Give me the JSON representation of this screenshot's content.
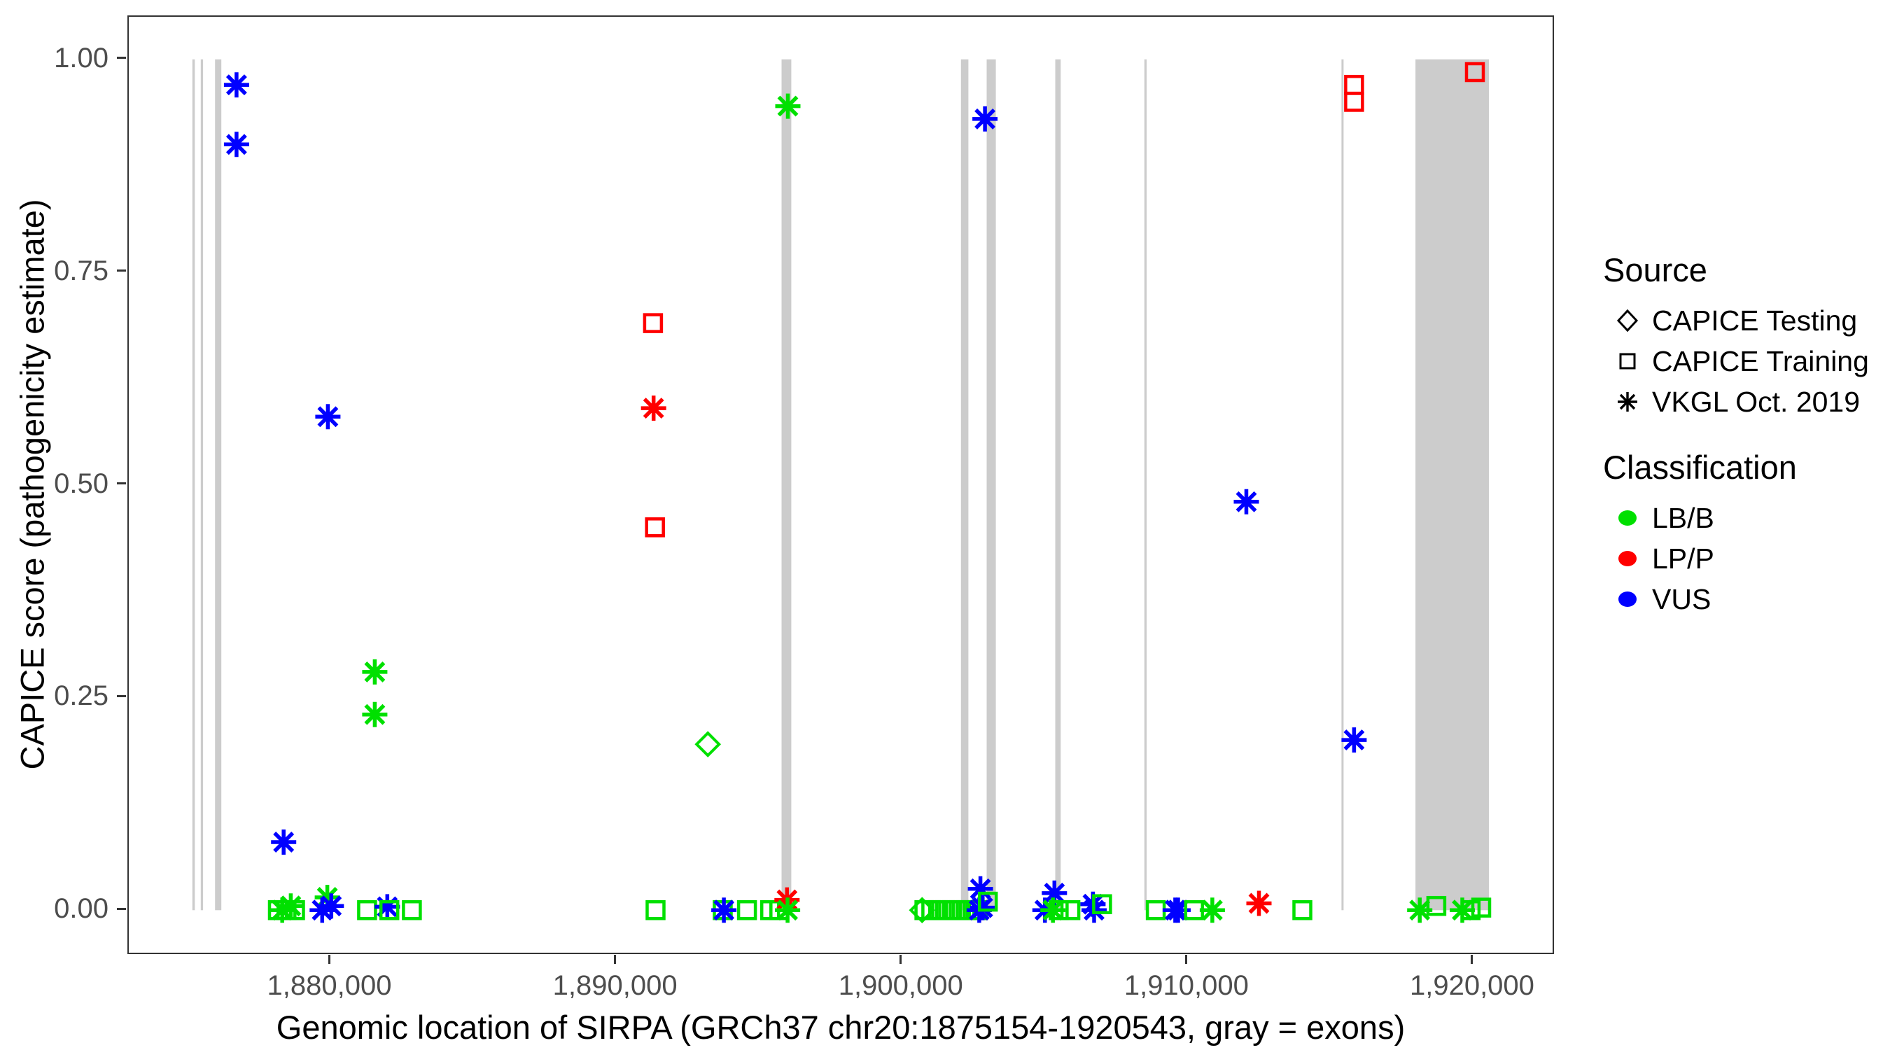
{
  "figure": {
    "x_axis_title": "Genomic location of SIRPA (GRCh37 chr20:1875154-1920543, gray = exons)",
    "y_axis_title": "CAPICE score (pathogenicity estimate)"
  },
  "legend": {
    "source": {
      "title": "Source",
      "items": [
        {
          "label": "CAPICE Testing",
          "marker": "diamond-icon"
        },
        {
          "label": "CAPICE Training",
          "marker": "square-icon"
        },
        {
          "label": "VKGL Oct. 2019",
          "marker": "asterisk-icon"
        }
      ]
    },
    "classification": {
      "title": "Classification",
      "items": [
        {
          "label": "LB/B",
          "color": "#00e000"
        },
        {
          "label": "LP/P",
          "color": "#ff0000"
        },
        {
          "label": "VUS",
          "color": "#0000ff"
        }
      ]
    }
  },
  "chart_data": {
    "type": "scatter",
    "title": "",
    "xlabel": "Genomic location of SIRPA (GRCh37 chr20:1875154-1920543, gray = exons)",
    "ylabel": "CAPICE score (pathogenicity estimate)",
    "x_domain": [
      1872930,
      1922770
    ],
    "y_domain": [
      -0.05,
      1.05
    ],
    "grid": "off",
    "legend_position": "right",
    "x_ticks": [
      {
        "value": 1880000,
        "label": "1,880,000"
      },
      {
        "value": 1890000,
        "label": "1,890,000"
      },
      {
        "value": 1900000,
        "label": "1,900,000"
      },
      {
        "value": 1910000,
        "label": "1,910,000"
      },
      {
        "value": 1920000,
        "label": "1,920,000"
      }
    ],
    "y_ticks": [
      {
        "value": 0.0,
        "label": "0.00"
      },
      {
        "value": 0.25,
        "label": "0.25"
      },
      {
        "value": 0.5,
        "label": "0.50"
      },
      {
        "value": 0.75,
        "label": "0.75"
      },
      {
        "value": 1.0,
        "label": "1.00"
      }
    ],
    "exon_color": "#cccccc",
    "exon_band_y_range": [
      0.0,
      1.0
    ],
    "exons_bp": [
      [
        1875154,
        1875240
      ],
      [
        1875450,
        1875530
      ],
      [
        1875950,
        1876170
      ],
      [
        1895780,
        1896120
      ],
      [
        1902060,
        1902320
      ],
      [
        1902960,
        1903280
      ],
      [
        1905360,
        1905550
      ],
      [
        1908480,
        1908560
      ],
      [
        1915380,
        1915440
      ],
      [
        1917970,
        1920543
      ]
    ],
    "marker_shapes": {
      "CAPICE Testing": "diamond",
      "CAPICE Training": "square",
      "VKGL Oct. 2019": "asterisk"
    },
    "colors": {
      "LB/B": "#00e000",
      "LP/P": "#ff0000",
      "VUS": "#0000ff"
    },
    "points": [
      {
        "x": 1876700,
        "y": 0.97,
        "source": "VKGL Oct. 2019",
        "classification": "VUS"
      },
      {
        "x": 1876700,
        "y": 0.9,
        "source": "VKGL Oct. 2019",
        "classification": "VUS"
      },
      {
        "x": 1879900,
        "y": 0.58,
        "source": "VKGL Oct. 2019",
        "classification": "VUS"
      },
      {
        "x": 1878350,
        "y": 0.08,
        "source": "VKGL Oct. 2019",
        "classification": "VUS"
      },
      {
        "x": 1881540,
        "y": 0.28,
        "source": "VKGL Oct. 2019",
        "classification": "LB/B"
      },
      {
        "x": 1881540,
        "y": 0.23,
        "source": "VKGL Oct. 2019",
        "classification": "LB/B"
      },
      {
        "x": 1878150,
        "y": 0.0,
        "source": "CAPICE Training",
        "classification": "LB/B"
      },
      {
        "x": 1878300,
        "y": 0.0,
        "source": "VKGL Oct. 2019",
        "classification": "LB/B"
      },
      {
        "x": 1878450,
        "y": 0.0,
        "source": "CAPICE Training",
        "classification": "LB/B"
      },
      {
        "x": 1878600,
        "y": 0.005,
        "source": "VKGL Oct. 2019",
        "classification": "LB/B"
      },
      {
        "x": 1878750,
        "y": 0.0,
        "source": "CAPICE Training",
        "classification": "LB/B"
      },
      {
        "x": 1879880,
        "y": 0.015,
        "source": "VKGL Oct. 2019",
        "classification": "LB/B"
      },
      {
        "x": 1879700,
        "y": 0.0,
        "source": "VKGL Oct. 2019",
        "classification": "VUS"
      },
      {
        "x": 1880020,
        "y": 0.005,
        "source": "VKGL Oct. 2019",
        "classification": "VUS"
      },
      {
        "x": 1881270,
        "y": 0.0,
        "source": "CAPICE Training",
        "classification": "LB/B"
      },
      {
        "x": 1881980,
        "y": 0.004,
        "source": "VKGL Oct. 2019",
        "classification": "VUS"
      },
      {
        "x": 1882050,
        "y": 0.0,
        "source": "CAPICE Training",
        "classification": "LB/B"
      },
      {
        "x": 1882840,
        "y": 0.0,
        "source": "CAPICE Training",
        "classification": "LB/B"
      },
      {
        "x": 1891280,
        "y": 0.69,
        "source": "CAPICE Training",
        "classification": "LP/P"
      },
      {
        "x": 1891300,
        "y": 0.59,
        "source": "VKGL Oct. 2019",
        "classification": "LP/P"
      },
      {
        "x": 1891350,
        "y": 0.45,
        "source": "CAPICE Training",
        "classification": "LP/P"
      },
      {
        "x": 1891370,
        "y": 0.0,
        "source": "CAPICE Training",
        "classification": "LB/B"
      },
      {
        "x": 1893200,
        "y": 0.195,
        "source": "CAPICE Testing",
        "classification": "LB/B"
      },
      {
        "x": 1893720,
        "y": 0.0,
        "source": "CAPICE Training",
        "classification": "LB/B"
      },
      {
        "x": 1893760,
        "y": 0.0,
        "source": "VKGL Oct. 2019",
        "classification": "VUS"
      },
      {
        "x": 1894570,
        "y": 0.0,
        "source": "CAPICE Training",
        "classification": "LB/B"
      },
      {
        "x": 1895380,
        "y": 0.0,
        "source": "CAPICE Training",
        "classification": "LB/B"
      },
      {
        "x": 1895700,
        "y": 0.0,
        "source": "CAPICE Training",
        "classification": "LB/B"
      },
      {
        "x": 1896000,
        "y": 0.945,
        "source": "VKGL Oct. 2019",
        "classification": "LB/B"
      },
      {
        "x": 1895970,
        "y": 0.012,
        "source": "VKGL Oct. 2019",
        "classification": "LP/P"
      },
      {
        "x": 1895990,
        "y": 0.0,
        "source": "VKGL Oct. 2019",
        "classification": "LB/B"
      },
      {
        "x": 1900700,
        "y": 0.0,
        "source": "CAPICE Testing",
        "classification": "LB/B"
      },
      {
        "x": 1900780,
        "y": 0.0,
        "source": "CAPICE Training",
        "classification": "LB/B"
      },
      {
        "x": 1901020,
        "y": 0.0,
        "source": "CAPICE Training",
        "classification": "LB/B"
      },
      {
        "x": 1901260,
        "y": 0.0,
        "source": "CAPICE Training",
        "classification": "LB/B"
      },
      {
        "x": 1901500,
        "y": 0.0,
        "source": "CAPICE Training",
        "classification": "LB/B"
      },
      {
        "x": 1901740,
        "y": 0.0,
        "source": "CAPICE Training",
        "classification": "LB/B"
      },
      {
        "x": 1901980,
        "y": 0.0,
        "source": "CAPICE Training",
        "classification": "LB/B"
      },
      {
        "x": 1902220,
        "y": 0.0,
        "source": "CAPICE Training",
        "classification": "LB/B"
      },
      {
        "x": 1902460,
        "y": 0.0,
        "source": "CAPICE Training",
        "classification": "LB/B"
      },
      {
        "x": 1902650,
        "y": 0.0,
        "source": "CAPICE Training",
        "classification": "LB/B"
      },
      {
        "x": 1902740,
        "y": 0.025,
        "source": "VKGL Oct. 2019",
        "classification": "VUS"
      },
      {
        "x": 1902700,
        "y": 0.0,
        "source": "VKGL Oct. 2019",
        "classification": "VUS"
      },
      {
        "x": 1902820,
        "y": 0.003,
        "source": "VKGL Oct. 2019",
        "classification": "VUS"
      },
      {
        "x": 1903000,
        "y": 0.01,
        "source": "CAPICE Training",
        "classification": "LB/B"
      },
      {
        "x": 1902900,
        "y": 0.93,
        "source": "VKGL Oct. 2019",
        "classification": "VUS"
      },
      {
        "x": 1905330,
        "y": 0.02,
        "source": "VKGL Oct. 2019",
        "classification": "VUS"
      },
      {
        "x": 1905000,
        "y": 0.0,
        "source": "VKGL Oct. 2019",
        "classification": "VUS"
      },
      {
        "x": 1905280,
        "y": 0.0,
        "source": "VKGL Oct. 2019",
        "classification": "LB/B"
      },
      {
        "x": 1905480,
        "y": 0.0,
        "source": "CAPICE Training",
        "classification": "LB/B"
      },
      {
        "x": 1905890,
        "y": 0.0,
        "source": "CAPICE Training",
        "classification": "LB/B"
      },
      {
        "x": 1906680,
        "y": 0.007,
        "source": "VKGL Oct. 2019",
        "classification": "VUS"
      },
      {
        "x": 1906720,
        "y": 0.0,
        "source": "VKGL Oct. 2019",
        "classification": "VUS"
      },
      {
        "x": 1907000,
        "y": 0.007,
        "source": "CAPICE Training",
        "classification": "LB/B"
      },
      {
        "x": 1908880,
        "y": 0.0,
        "source": "CAPICE Training",
        "classification": "LB/B"
      },
      {
        "x": 1909560,
        "y": 0.0,
        "source": "VKGL Oct. 2019",
        "classification": "VUS"
      },
      {
        "x": 1909660,
        "y": 0.0,
        "source": "VKGL Oct. 2019",
        "classification": "VUS"
      },
      {
        "x": 1910220,
        "y": 0.0,
        "source": "CAPICE Training",
        "classification": "LB/B"
      },
      {
        "x": 1910860,
        "y": 0.0,
        "source": "VKGL Oct. 2019",
        "classification": "LB/B"
      },
      {
        "x": 1912050,
        "y": 0.48,
        "source": "VKGL Oct. 2019",
        "classification": "VUS"
      },
      {
        "x": 1912490,
        "y": 0.008,
        "source": "VKGL Oct. 2019",
        "classification": "LP/P"
      },
      {
        "x": 1914010,
        "y": 0.0,
        "source": "CAPICE Training",
        "classification": "LB/B"
      },
      {
        "x": 1915820,
        "y": 0.97,
        "source": "CAPICE Training",
        "classification": "LP/P"
      },
      {
        "x": 1915820,
        "y": 0.95,
        "source": "CAPICE Training",
        "classification": "LP/P"
      },
      {
        "x": 1915820,
        "y": 0.2,
        "source": "VKGL Oct. 2019",
        "classification": "VUS"
      },
      {
        "x": 1918120,
        "y": 0.0,
        "source": "VKGL Oct. 2019",
        "classification": "LB/B"
      },
      {
        "x": 1918700,
        "y": 0.005,
        "source": "CAPICE Training",
        "classification": "LB/B"
      },
      {
        "x": 1919610,
        "y": 0.0,
        "source": "VKGL Oct. 2019",
        "classification": "LB/B"
      },
      {
        "x": 1919900,
        "y": 0.0,
        "source": "CAPICE Training",
        "classification": "LB/B"
      },
      {
        "x": 1920270,
        "y": 0.003,
        "source": "CAPICE Training",
        "classification": "LB/B"
      },
      {
        "x": 1920050,
        "y": 0.985,
        "source": "CAPICE Training",
        "classification": "LP/P"
      }
    ]
  }
}
